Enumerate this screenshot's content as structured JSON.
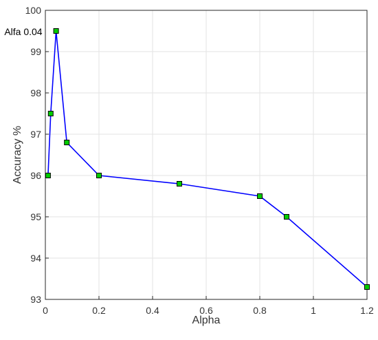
{
  "chart_data": {
    "type": "line",
    "xlabel": "Alpha",
    "ylabel": "Accuracy %",
    "xlim": [
      0,
      1.2
    ],
    "ylim": [
      93,
      100
    ],
    "xticks": [
      "0",
      "0.2",
      "0.4",
      "0.6",
      "0.8",
      "1",
      "1.2"
    ],
    "yticks": [
      "93",
      "94",
      "95",
      "96",
      "97",
      "98",
      "99",
      "100"
    ],
    "grid": true,
    "series": [
      {
        "x": [
          0.01,
          0.02,
          0.04,
          0.08,
          0.2,
          0.5,
          0.8,
          0.9,
          1.2
        ],
        "y": [
          96.0,
          97.5,
          99.5,
          96.8,
          96.0,
          95.8,
          95.5,
          95.0,
          93.3
        ],
        "color": "#0000ff",
        "marker_color": "#00cc00"
      }
    ],
    "annotation": {
      "text": "Alfa 0.04",
      "x": 0.04,
      "y": 99.5
    }
  }
}
